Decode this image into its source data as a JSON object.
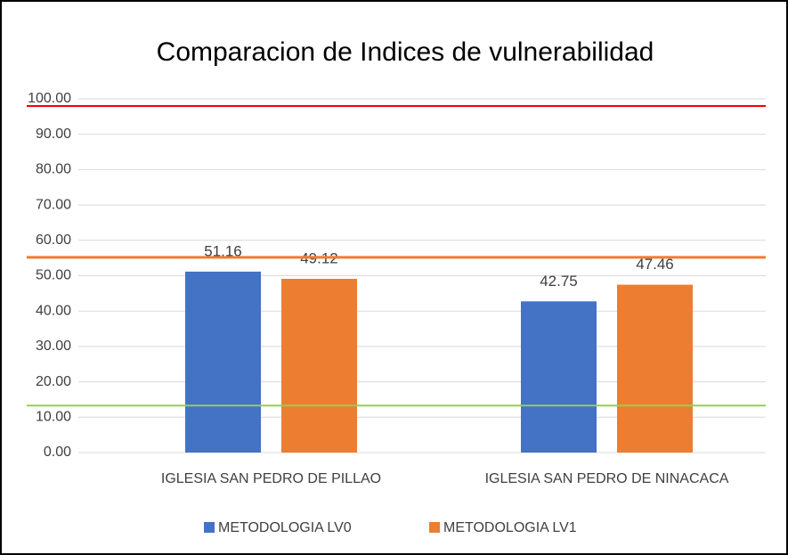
{
  "chart_data": {
    "type": "bar",
    "title": "Comparacion de Indices de vulnerabilidad",
    "categories": [
      "IGLESIA SAN PEDRO DE PILLAO",
      "IGLESIA SAN PEDRO DE NINACACA"
    ],
    "series": [
      {
        "name": "METODOLOGIA LV0",
        "color": "#4472c4",
        "values": [
          51.16,
          42.75
        ]
      },
      {
        "name": "METODOLOGIA LV1",
        "color": "#ed7d31",
        "values": [
          49.12,
          47.46
        ]
      }
    ],
    "reference_lines": [
      {
        "value": 98,
        "color": "#ff0000"
      },
      {
        "value": 55.2,
        "color": "#ed7d31"
      },
      {
        "value": 13.3,
        "color": "#92d050"
      }
    ],
    "ylim": [
      0,
      100
    ],
    "yticks": [
      {
        "value": 0,
        "label": "0.00"
      },
      {
        "value": 10,
        "label": "10.00"
      },
      {
        "value": 20,
        "label": "20.00"
      },
      {
        "value": 30,
        "label": "30.00"
      },
      {
        "value": 40,
        "label": "40.00"
      },
      {
        "value": 50,
        "label": "50.00"
      },
      {
        "value": 60,
        "label": "60.00"
      },
      {
        "value": 70,
        "label": "70.00"
      },
      {
        "value": 80,
        "label": "80.00"
      },
      {
        "value": 90,
        "label": "90.00"
      },
      {
        "value": 100,
        "label": "100.00"
      }
    ],
    "grid": true,
    "legend": "bottom"
  }
}
